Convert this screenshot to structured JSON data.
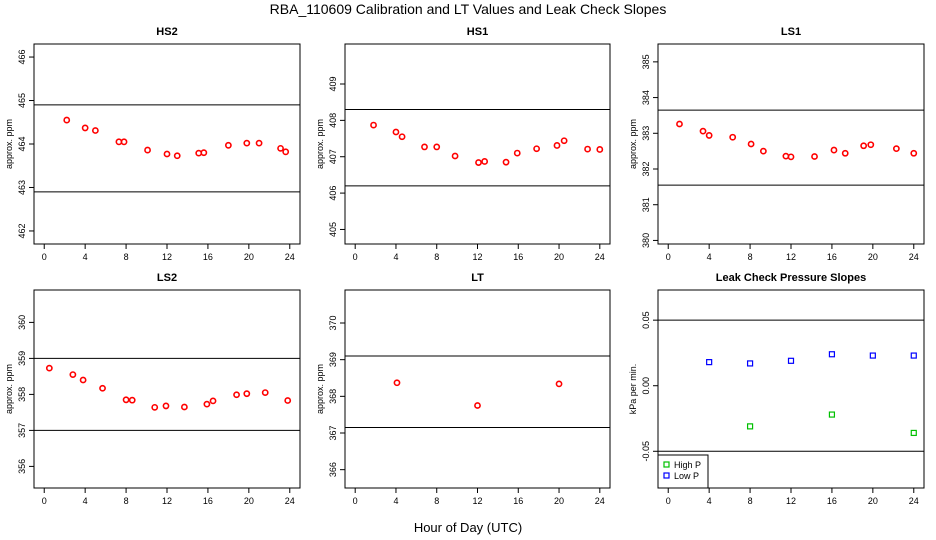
{
  "figure": {
    "title": "RBA_110609  Calibration and LT Values and Leak Check Slopes",
    "xlabel": "Hour of Day (UTC)"
  },
  "chart_data": [
    {
      "type": "scatter",
      "title": "HS2",
      "xlabel": "Hour of Day (UTC)",
      "ylabel": "approx. ppm",
      "xlim": [
        -1,
        25
      ],
      "ylim": [
        461.7,
        466.3
      ],
      "xticks": [
        "0",
        "4",
        "8",
        "12",
        "16",
        "20",
        "24"
      ],
      "yticks": [
        "462",
        "463",
        "464",
        "465",
        "466"
      ],
      "hlines": [
        462.9,
        464.9
      ],
      "series": [
        {
          "color": "#ff0000",
          "marker": "circle",
          "x": [
            2.2,
            4.0,
            5.0,
            7.3,
            7.8,
            10.1,
            12.0,
            13.0,
            15.1,
            15.6,
            18.0,
            19.8,
            21.0,
            23.1,
            23.6
          ],
          "y": [
            464.55,
            464.37,
            464.31,
            464.05,
            464.05,
            463.86,
            463.77,
            463.73,
            463.79,
            463.8,
            463.97,
            464.02,
            464.02,
            463.9,
            463.82
          ]
        }
      ]
    },
    {
      "type": "scatter",
      "title": "HS1",
      "xlabel": "Hour of Day (UTC)",
      "ylabel": "approx. ppm",
      "xlim": [
        -1,
        25
      ],
      "ylim": [
        404.6,
        410.1
      ],
      "xticks": [
        "0",
        "4",
        "8",
        "12",
        "16",
        "20",
        "24"
      ],
      "yticks": [
        "405",
        "406",
        "407",
        "408",
        "409"
      ],
      "hlines": [
        406.2,
        408.3
      ],
      "series": [
        {
          "color": "#ff0000",
          "marker": "circle",
          "x": [
            1.8,
            4.0,
            4.6,
            6.8,
            8.0,
            9.8,
            12.1,
            12.7,
            14.8,
            15.9,
            17.8,
            19.8,
            20.5,
            22.8,
            24.0
          ],
          "y": [
            407.87,
            407.68,
            407.55,
            407.27,
            407.27,
            407.02,
            406.84,
            406.87,
            406.85,
            407.1,
            407.22,
            407.31,
            407.44,
            407.21,
            407.2
          ]
        }
      ]
    },
    {
      "type": "scatter",
      "title": "LS1",
      "xlabel": "Hour of Day (UTC)",
      "ylabel": "approx. ppm",
      "xlim": [
        -1,
        25
      ],
      "ylim": [
        379.9,
        385.5
      ],
      "xticks": [
        "0",
        "4",
        "8",
        "12",
        "16",
        "20",
        "24"
      ],
      "yticks": [
        "380",
        "381",
        "382",
        "383",
        "384",
        "385"
      ],
      "hlines": [
        381.55,
        383.65
      ],
      "series": [
        {
          "color": "#ff0000",
          "marker": "circle",
          "x": [
            1.1,
            3.4,
            4.0,
            6.3,
            8.1,
            9.3,
            11.5,
            12.0,
            14.3,
            16.2,
            17.3,
            19.1,
            19.8,
            22.3,
            24.0
          ],
          "y": [
            383.26,
            383.06,
            382.94,
            382.89,
            382.7,
            382.5,
            382.36,
            382.34,
            382.35,
            382.53,
            382.44,
            382.65,
            382.68,
            382.57,
            382.44
          ]
        }
      ]
    },
    {
      "type": "scatter",
      "title": "LS2",
      "xlabel": "Hour of Day (UTC)",
      "ylabel": "approx. ppm",
      "xlim": [
        -1,
        25
      ],
      "ylim": [
        355.4,
        360.9
      ],
      "xticks": [
        "0",
        "4",
        "8",
        "12",
        "16",
        "20",
        "24"
      ],
      "yticks": [
        "356",
        "357",
        "358",
        "359",
        "360"
      ],
      "hlines": [
        357.0,
        359.0
      ],
      "series": [
        {
          "color": "#ff0000",
          "marker": "circle",
          "x": [
            0.5,
            2.8,
            3.8,
            5.7,
            8.0,
            8.6,
            10.8,
            11.9,
            13.7,
            15.9,
            16.5,
            18.8,
            19.8,
            21.6,
            23.8
          ],
          "y": [
            358.73,
            358.55,
            358.4,
            358.17,
            357.85,
            357.84,
            357.64,
            357.68,
            357.65,
            357.73,
            357.82,
            357.99,
            358.02,
            358.05,
            357.83
          ]
        }
      ]
    },
    {
      "type": "scatter",
      "title": "LT",
      "xlabel": "Hour of Day (UTC)",
      "ylabel": "approx. ppm",
      "xlim": [
        -1,
        25
      ],
      "ylim": [
        365.5,
        370.9
      ],
      "xticks": [
        "0",
        "4",
        "8",
        "12",
        "16",
        "20",
        "24"
      ],
      "yticks": [
        "366",
        "367",
        "368",
        "369",
        "370"
      ],
      "hlines": [
        367.15,
        369.1
      ],
      "series": [
        {
          "color": "#ff0000",
          "marker": "circle",
          "x": [
            4.1,
            12.0,
            20.0
          ],
          "y": [
            368.37,
            367.75,
            368.34
          ]
        }
      ]
    },
    {
      "type": "scatter",
      "title": "Leak Check Pressure Slopes",
      "xlabel": "Hour of Day (UTC)",
      "ylabel": "kPa per min.",
      "xlim": [
        -1,
        25
      ],
      "ylim": [
        -0.078,
        0.073
      ],
      "xticks": [
        "0",
        "4",
        "8",
        "12",
        "16",
        "20",
        "24"
      ],
      "yticks": [
        "-0.05",
        "0.00",
        "0.05"
      ],
      "hlines": [
        0.05,
        -0.05
      ],
      "legend_position": "bottom-left",
      "series": [
        {
          "name": "High P",
          "color": "#00c000",
          "marker": "square",
          "x": [
            8.0,
            16.0,
            24.0
          ],
          "y": [
            -0.031,
            -0.022,
            -0.036
          ]
        },
        {
          "name": "Low P",
          "color": "#0000ff",
          "marker": "square",
          "x": [
            4.0,
            8.0,
            12.0,
            16.0,
            20.0,
            24.0
          ],
          "y": [
            0.018,
            0.017,
            0.019,
            0.024,
            0.023,
            0.023
          ]
        }
      ]
    }
  ]
}
